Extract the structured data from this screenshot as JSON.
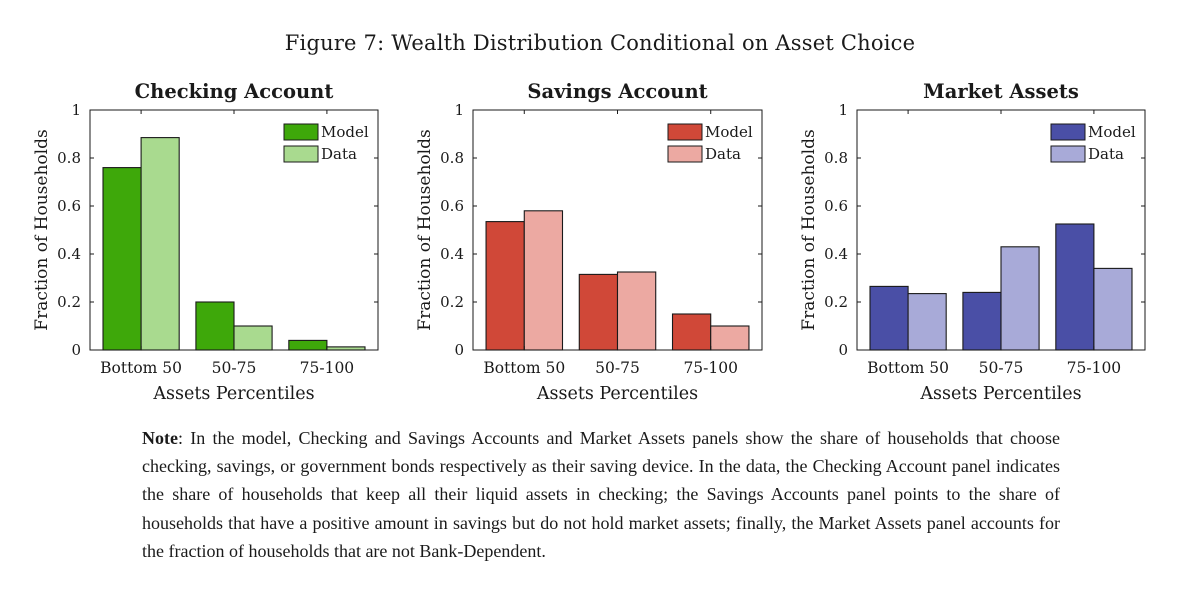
{
  "figure": {
    "title": "Figure 7: Wealth Distribution Conditional on Asset Choice"
  },
  "chart_data": [
    {
      "type": "bar",
      "title": "Checking Account",
      "xlabel": "Assets Percentiles",
      "ylabel": "Fraction of Households",
      "categories": [
        "Bottom 50",
        "50-75",
        "75-100"
      ],
      "ylim": [
        0,
        1
      ],
      "yticks": [
        0,
        0.2,
        0.4,
        0.6,
        0.8,
        1
      ],
      "ytick_labels": [
        "0",
        "0.2",
        "0.4",
        "0.6",
        "0.8",
        "1"
      ],
      "legend_position": "top-right",
      "series": [
        {
          "name": "Model",
          "color": "#3ea80a",
          "values": [
            0.76,
            0.2,
            0.04
          ]
        },
        {
          "name": "Data",
          "color": "#a9da8f",
          "values": [
            0.885,
            0.1,
            0.013
          ]
        }
      ]
    },
    {
      "type": "bar",
      "title": "Savings Account",
      "xlabel": "Assets Percentiles",
      "ylabel": "Fraction of Households",
      "categories": [
        "Bottom 50",
        "50-75",
        "75-100"
      ],
      "ylim": [
        0,
        1
      ],
      "yticks": [
        0,
        0.2,
        0.4,
        0.6,
        0.8,
        1
      ],
      "ytick_labels": [
        "0",
        "0.2",
        "0.4",
        "0.6",
        "0.8",
        "1"
      ],
      "legend_position": "top-right",
      "series": [
        {
          "name": "Model",
          "color": "#d04838",
          "values": [
            0.535,
            0.315,
            0.15
          ]
        },
        {
          "name": "Data",
          "color": "#eca9a2",
          "values": [
            0.58,
            0.325,
            0.1
          ]
        }
      ]
    },
    {
      "type": "bar",
      "title": "Market Assets",
      "xlabel": "Assets Percentiles",
      "ylabel": "Fraction of Households",
      "categories": [
        "Bottom 50",
        "50-75",
        "75-100"
      ],
      "ylim": [
        0,
        1
      ],
      "yticks": [
        0,
        0.2,
        0.4,
        0.6,
        0.8,
        1
      ],
      "ytick_labels": [
        "0",
        "0.2",
        "0.4",
        "0.6",
        "0.8",
        "1"
      ],
      "legend_position": "top-right",
      "series": [
        {
          "name": "Model",
          "color": "#4a4fa6",
          "values": [
            0.265,
            0.24,
            0.525
          ]
        },
        {
          "name": "Data",
          "color": "#a8aad8",
          "values": [
            0.235,
            0.43,
            0.34
          ]
        }
      ]
    }
  ],
  "note": {
    "label": "Note",
    "text": ": In the model, Checking and Savings Accounts and Market Assets panels show the share of households that choose checking, savings, or government bonds respectively as their saving device. In the data, the Checking Account panel indicates the share of households that keep all their liquid assets in checking; the Savings Accounts panel points to the share of households that have a positive amount in savings but do not hold market assets; finally, the Market Assets panel accounts for the fraction of households that are not Bank-Dependent."
  }
}
